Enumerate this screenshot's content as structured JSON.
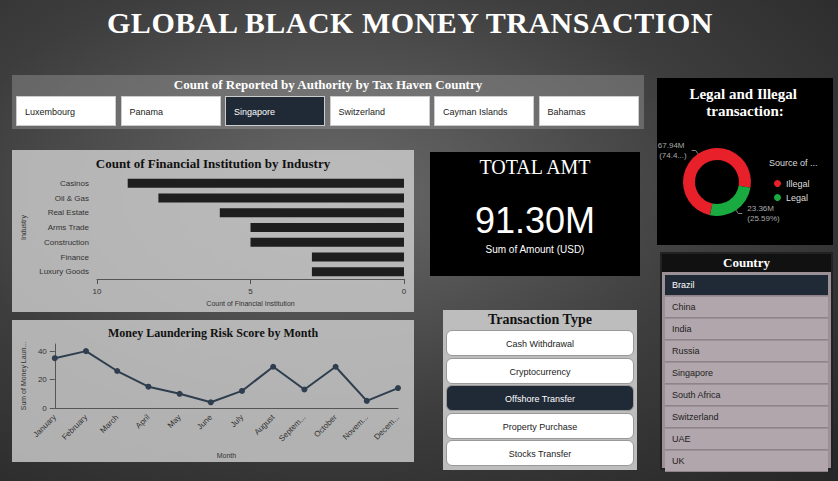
{
  "title": "GLOBAL BLACK MONEY TRANSACTION",
  "tax_haven_slicer": {
    "title": "Count of Reported by Authority by Tax Haven Country",
    "items": [
      "Luxembourg",
      "Panama",
      "Singapore",
      "Switzerland",
      "Cayman Islands",
      "Bahamas"
    ],
    "selected": "Singapore"
  },
  "kpi": {
    "title": "TOTAL AMT",
    "value": "91.30M",
    "label": "Sum of Amount (USD)"
  },
  "transaction_type_slicer": {
    "title": "Transaction Type",
    "items": [
      "Cash Withdrawal",
      "Cryptocurrency",
      "Offshore Transfer",
      "Property Purchase",
      "Stocks Transfer"
    ],
    "selected": "Offshore Transfer"
  },
  "country_slicer": {
    "title": "Country",
    "items": [
      "Brazil",
      "China",
      "India",
      "Russia",
      "Singapore",
      "South Africa",
      "Switzerland",
      "UAE",
      "UK"
    ],
    "selected": "Brazil"
  },
  "chart_data": [
    {
      "type": "bar",
      "title": "Count of Financial Institution by Industry",
      "orientation": "horizontal",
      "categories": [
        "Casinos",
        "Oil & Gas",
        "Real Estate",
        "Arms Trade",
        "Construction",
        "Finance",
        "Luxury Goods"
      ],
      "values": [
        9,
        8,
        6,
        5,
        5,
        3,
        3
      ],
      "color": "#1e1e1e",
      "xlim": [
        10,
        0
      ],
      "xticks": [
        10,
        5,
        0
      ],
      "x_label": "Count of Financial Institution",
      "y_label": "Industry",
      "grid": false
    },
    {
      "type": "line",
      "title": "Money Laundering Risk Score by Month",
      "categories": [
        "January",
        "February",
        "March",
        "April",
        "May",
        "June",
        "July",
        "August",
        "Septem...",
        "October",
        "Novem...",
        "Decem..."
      ],
      "values": [
        35,
        40,
        26,
        15,
        10,
        4,
        12,
        29,
        13,
        29,
        5,
        14
      ],
      "color": "#2f3e4e",
      "marker": "circle",
      "ylim": [
        0,
        45
      ],
      "yticks": [
        0,
        20,
        40
      ],
      "x_label": "Month",
      "y_label": "Sum of Money Laun...",
      "grid": false
    },
    {
      "type": "pie",
      "title": "Legal and Illegal transaction:",
      "legend_title": "Source of ...",
      "categories": [
        "Illegal",
        "Legal"
      ],
      "values": [
        67.94,
        23.36
      ],
      "value_labels": [
        "67.94M (74.4...)",
        "23.36M (25.59%)"
      ],
      "colors": [
        "#e8202a",
        "#1aab40"
      ],
      "data_labels": true,
      "legend": "right"
    }
  ]
}
